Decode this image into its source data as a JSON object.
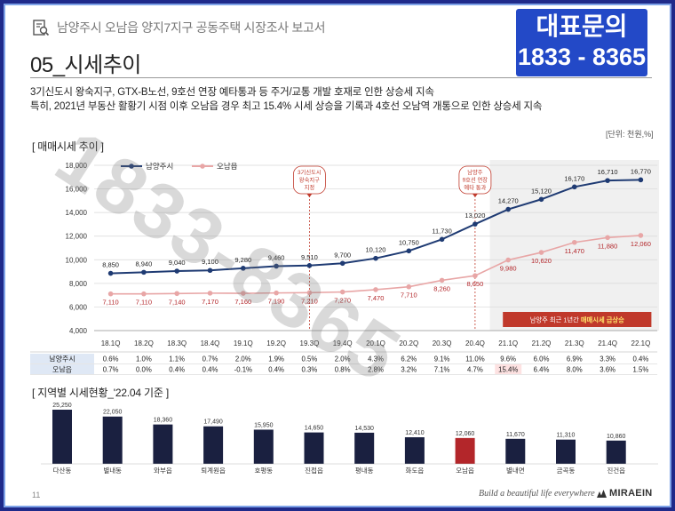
{
  "header": {
    "title": "남양주시 오남읍 양지7지구 공동주택 시장조사 보고서",
    "badge_line1": "대표문의",
    "badge_line2": "1833 - 8365"
  },
  "section_title": "05_시세추이",
  "description": [
    "3기신도시 왕숙지구, GTX-B노선, 9호선 연장 예타통과 등 주거/교통 개발 호재로 인한 상승세 지속",
    "특히, 2021년 부동산 활황기 시점 이후 오남읍 경우 최고 15.4% 시세 상승을 기록과 4호선 오남역 개통으로 인한 상승세 지속"
  ],
  "unit_label": "[단위: 천원,%]",
  "watermark": "1833-8365",
  "footer": {
    "page": "11",
    "tagline": "Build a beautiful life everywhere",
    "brand": "MIRAEIN"
  },
  "colors": {
    "badge_bg": "#2349c7",
    "namyangju_line": "#1f3b73",
    "onam_line": "#e8a6a6",
    "bar_default": "#1a2040",
    "bar_highlight": "#b3262a",
    "callout_red": "#c0392b",
    "band_gray": "#f0f0f0"
  },
  "chart_data": [
    {
      "type": "line",
      "title": "[ 매매시세 추이 ]",
      "categories": [
        "18.1Q",
        "18.2Q",
        "18.3Q",
        "18.4Q",
        "19.1Q",
        "19.2Q",
        "19.3Q",
        "19.4Q",
        "20.1Q",
        "20.2Q",
        "20.3Q",
        "20.4Q",
        "21.1Q",
        "21.2Q",
        "21.3Q",
        "21.4Q",
        "22.1Q"
      ],
      "y_ticks": [
        "4,000",
        "6,000",
        "8,000",
        "10,000",
        "12,000",
        "14,000",
        "16,000",
        "18,000"
      ],
      "ylim": [
        4000,
        18000
      ],
      "legend_position": "top-left",
      "series": [
        {
          "name": "남양주시",
          "values": [
            8850,
            8940,
            9040,
            9100,
            9280,
            9460,
            9510,
            9700,
            10120,
            10750,
            11730,
            13020,
            14270,
            15120,
            16170,
            16710,
            16770
          ],
          "labels": [
            "8,850",
            "8,940",
            "9,040",
            "9,100",
            "9,280",
            "9,460",
            "9,510",
            "9,700",
            "10,120",
            "10,750",
            "11,730",
            "13,020",
            "14,270",
            "15,120",
            "16,170",
            "16,710",
            "16,770"
          ]
        },
        {
          "name": "오남읍",
          "values": [
            7110,
            7110,
            7140,
            7170,
            7160,
            7190,
            7210,
            7270,
            7470,
            7710,
            8260,
            8650,
            9980,
            10620,
            11470,
            11880,
            12060
          ],
          "labels": [
            "7,110",
            "7,110",
            "7,140",
            "7,170",
            "7,160",
            "7,190",
            "7,210",
            "7,270",
            "7,470",
            "7,710",
            "8,260",
            "8,650",
            "9,980",
            "10,620",
            "11,470",
            "11,880",
            "12,060"
          ]
        }
      ],
      "annotations": [
        {
          "text_lines": [
            "3기신도시",
            "왕숙지구",
            "지정"
          ],
          "at": "19.3Q"
        },
        {
          "text_lines": [
            "남양주",
            "9호선 연장",
            "예타 통과"
          ],
          "at": "20.4Q"
        },
        {
          "text_lines": [
            "남양주 최근 1년간 ",
            "매매시세 급상승"
          ],
          "at": "21.1Q-22.1Q"
        }
      ],
      "change_table": {
        "rows": [
          {
            "name": "남양주시",
            "values": [
              "0.6%",
              "1.0%",
              "1.1%",
              "0.7%",
              "2.0%",
              "1.9%",
              "0.5%",
              "2.0%",
              "4.3%",
              "6.2%",
              "9.1%",
              "11.0%",
              "9.6%",
              "6.0%",
              "6.9%",
              "3.3%",
              "0.4%"
            ]
          },
          {
            "name": "오남읍",
            "values": [
              "0.7%",
              "0.0%",
              "0.4%",
              "0.4%",
              "-0.1%",
              "0.4%",
              "0.3%",
              "0.8%",
              "2.8%",
              "3.2%",
              "7.1%",
              "4.7%",
              "15.4%",
              "6.4%",
              "8.0%",
              "3.6%",
              "1.5%"
            ]
          }
        ]
      }
    },
    {
      "type": "bar",
      "title": "[ 지역별 시세현황_'22.04 기준 ]",
      "categories": [
        "다산동",
        "별내동",
        "와부읍",
        "퇴계원읍",
        "호평동",
        "진접읍",
        "평내동",
        "화도읍",
        "오남읍",
        "별내면",
        "금곡동",
        "진건읍"
      ],
      "values": [
        25250,
        22050,
        18360,
        17490,
        15950,
        14650,
        14530,
        12410,
        12060,
        11670,
        11310,
        10860
      ],
      "labels": [
        "25,250",
        "22,050",
        "18,360",
        "17,490",
        "15,950",
        "14,650",
        "14,530",
        "12,410",
        "12,060",
        "11,670",
        "11,310",
        "10,860"
      ],
      "highlight": "오남읍"
    }
  ]
}
